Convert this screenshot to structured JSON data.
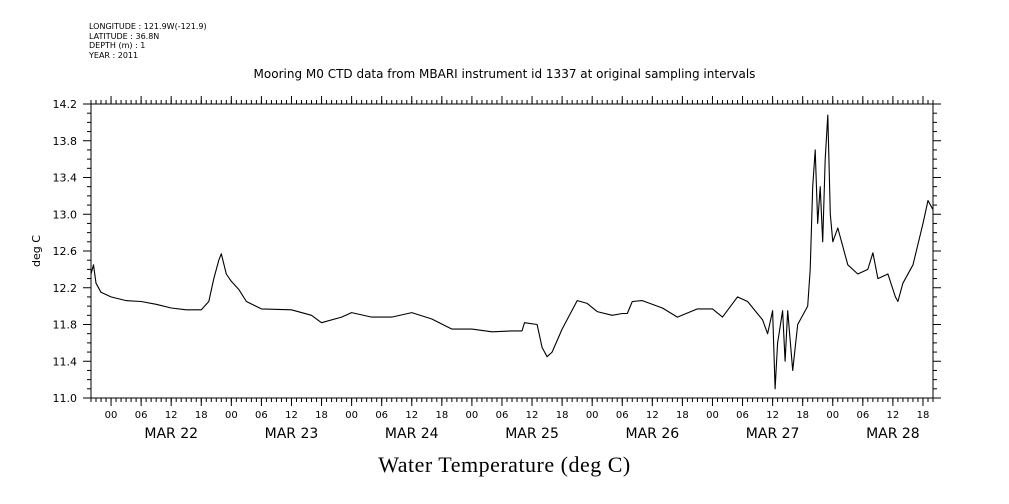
{
  "header": {
    "longitude": "LONGITUDE : 121.9W(-121.9)",
    "latitude": "LATITUDE : 36.8N",
    "depth": "DEPTH (m) : 1",
    "year": "YEAR : 2011"
  },
  "chart_data": {
    "type": "line",
    "title": "Mooring M0 CTD data from MBARI instrument id 1337 at original sampling intervals",
    "xlabel": "Water Temperature (deg C)",
    "ylabel": "deg C",
    "ylim": [
      11.0,
      14.2
    ],
    "yticks": [
      "11.0",
      "11.4",
      "11.8",
      "12.2",
      "12.6",
      "13.0",
      "13.4",
      "13.8",
      "14.2"
    ],
    "x_start": "2011-03-21 20:00",
    "x_end": "2011-03-28 20:00",
    "hour_ticks": [
      "00",
      "06",
      "12",
      "18",
      "00",
      "06",
      "12",
      "18",
      "00",
      "06",
      "12",
      "18",
      "00",
      "06",
      "12",
      "18",
      "00",
      "06",
      "12",
      "18",
      "00",
      "06",
      "12",
      "18",
      "00",
      "06",
      "12",
      "18"
    ],
    "day_labels": [
      "MAR 22",
      "MAR 23",
      "MAR 24",
      "MAR 25",
      "MAR 26",
      "MAR 27",
      "MAR 28"
    ],
    "series": [
      {
        "points": [
          [
            "2011-03-21 20:00",
            12.35
          ],
          [
            "2011-03-21 20:30",
            12.45
          ],
          [
            "2011-03-21 21:00",
            12.25
          ],
          [
            "2011-03-21 22:00",
            12.15
          ],
          [
            "2011-03-22 00:00",
            12.1
          ],
          [
            "2011-03-22 03:00",
            12.06
          ],
          [
            "2011-03-22 06:00",
            12.05
          ],
          [
            "2011-03-22 09:00",
            12.02
          ],
          [
            "2011-03-22 12:00",
            11.98
          ],
          [
            "2011-03-22 15:00",
            11.96
          ],
          [
            "2011-03-22 18:00",
            11.96
          ],
          [
            "2011-03-22 19:30",
            12.05
          ],
          [
            "2011-03-22 20:30",
            12.3
          ],
          [
            "2011-03-22 21:30",
            12.5
          ],
          [
            "2011-03-22 22:00",
            12.57
          ],
          [
            "2011-03-22 23:00",
            12.35
          ],
          [
            "2011-03-23 00:00",
            12.27
          ],
          [
            "2011-03-23 01:30",
            12.18
          ],
          [
            "2011-03-23 03:00",
            12.05
          ],
          [
            "2011-03-23 06:00",
            11.97
          ],
          [
            "2011-03-23 12:00",
            11.96
          ],
          [
            "2011-03-23 16:00",
            11.9
          ],
          [
            "2011-03-23 18:00",
            11.82
          ],
          [
            "2011-03-23 22:00",
            11.88
          ],
          [
            "2011-03-24 00:00",
            11.93
          ],
          [
            "2011-03-24 04:00",
            11.88
          ],
          [
            "2011-03-24 08:00",
            11.88
          ],
          [
            "2011-03-24 12:00",
            11.93
          ],
          [
            "2011-03-24 16:00",
            11.86
          ],
          [
            "2011-03-24 20:00",
            11.75
          ],
          [
            "2011-03-25 00:00",
            11.75
          ],
          [
            "2011-03-25 04:00",
            11.72
          ],
          [
            "2011-03-25 08:00",
            11.73
          ],
          [
            "2011-03-25 10:00",
            11.73
          ],
          [
            "2011-03-25 10:30",
            11.82
          ],
          [
            "2011-03-25 13:00",
            11.8
          ],
          [
            "2011-03-25 14:00",
            11.55
          ],
          [
            "2011-03-25 15:00",
            11.45
          ],
          [
            "2011-03-25 16:00",
            11.5
          ],
          [
            "2011-03-25 18:00",
            11.75
          ],
          [
            "2011-03-25 21:00",
            12.06
          ],
          [
            "2011-03-25 23:00",
            12.03
          ],
          [
            "2011-03-26 01:00",
            11.94
          ],
          [
            "2011-03-26 04:00",
            11.9
          ],
          [
            "2011-03-26 06:00",
            11.92
          ],
          [
            "2011-03-26 07:00",
            11.92
          ],
          [
            "2011-03-26 08:00",
            12.05
          ],
          [
            "2011-03-26 10:00",
            12.06
          ],
          [
            "2011-03-26 14:00",
            11.98
          ],
          [
            "2011-03-26 17:00",
            11.88
          ],
          [
            "2011-03-26 21:00",
            11.97
          ],
          [
            "2011-03-27 00:00",
            11.97
          ],
          [
            "2011-03-27 02:00",
            11.88
          ],
          [
            "2011-03-27 05:00",
            12.1
          ],
          [
            "2011-03-27 07:00",
            12.05
          ],
          [
            "2011-03-27 10:00",
            11.85
          ],
          [
            "2011-03-27 11:00",
            11.7
          ],
          [
            "2011-03-27 12:00",
            11.95
          ],
          [
            "2011-03-27 12:30",
            11.1
          ],
          [
            "2011-03-27 13:00",
            11.6
          ],
          [
            "2011-03-27 14:00",
            11.95
          ],
          [
            "2011-03-27 14:30",
            11.4
          ],
          [
            "2011-03-27 15:00",
            11.95
          ],
          [
            "2011-03-27 16:00",
            11.3
          ],
          [
            "2011-03-27 17:00",
            11.8
          ],
          [
            "2011-03-27 19:00",
            12.0
          ],
          [
            "2011-03-27 19:30",
            12.4
          ],
          [
            "2011-03-27 20:00",
            13.3
          ],
          [
            "2011-03-27 20:30",
            13.7
          ],
          [
            "2011-03-27 21:00",
            12.9
          ],
          [
            "2011-03-27 21:30",
            13.3
          ],
          [
            "2011-03-27 22:00",
            12.7
          ],
          [
            "2011-03-27 22:30",
            13.6
          ],
          [
            "2011-03-27 23:00",
            14.08
          ],
          [
            "2011-03-27 23:30",
            13.0
          ],
          [
            "2011-03-28 00:00",
            12.7
          ],
          [
            "2011-03-28 01:00",
            12.85
          ],
          [
            "2011-03-28 03:00",
            12.45
          ],
          [
            "2011-03-28 05:00",
            12.35
          ],
          [
            "2011-03-28 07:00",
            12.4
          ],
          [
            "2011-03-28 08:00",
            12.58
          ],
          [
            "2011-03-28 09:00",
            12.3
          ],
          [
            "2011-03-28 11:00",
            12.35
          ],
          [
            "2011-03-28 12:30",
            12.1
          ],
          [
            "2011-03-28 13:00",
            12.05
          ],
          [
            "2011-03-28 14:00",
            12.25
          ],
          [
            "2011-03-28 16:00",
            12.45
          ],
          [
            "2011-03-28 18:00",
            12.9
          ],
          [
            "2011-03-28 19:00",
            13.15
          ],
          [
            "2011-03-28 20:00",
            13.05
          ]
        ]
      }
    ]
  }
}
